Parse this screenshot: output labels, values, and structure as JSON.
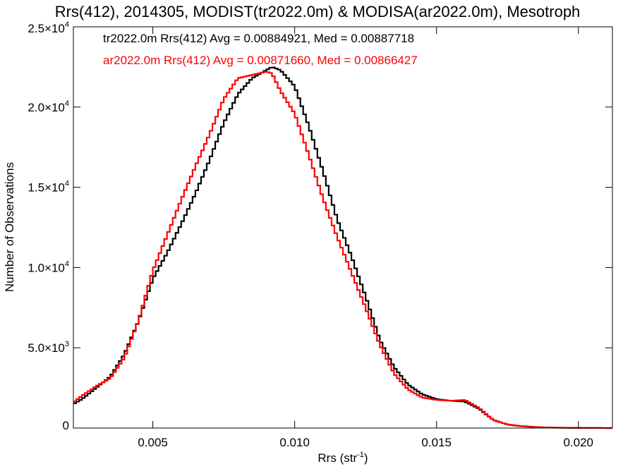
{
  "chart_data": {
    "type": "line",
    "title": "Rrs(412), 2014305, MODIST(tr2022.0m) & MODISA(ar2022.0m), Mesotroph",
    "xlabel": "Rrs (str",
    "xlabel_sup": "-1",
    "xlabel_end": ")",
    "ylabel": "Number of Observations",
    "xlim": [
      0.0022,
      0.0212
    ],
    "ylim": [
      0,
      25000
    ],
    "x_ticks": [
      0.005,
      0.01,
      0.015,
      0.02
    ],
    "x_tick_labels": [
      "0.005",
      "0.010",
      "0.015",
      "0.020"
    ],
    "y_ticks": [
      0,
      5000,
      10000,
      15000,
      20000,
      25000
    ],
    "y_tick_labels": [
      {
        "text": "0",
        "base": "0",
        "exp": ""
      },
      {
        "text": "5.0×10^3",
        "base": "5.0×10",
        "exp": "3"
      },
      {
        "text": "1.0×10^4",
        "base": "1.0×10",
        "exp": "4"
      },
      {
        "text": "1.5×10^4",
        "base": "1.5×10",
        "exp": "4"
      },
      {
        "text": "2.0×10^4",
        "base": "2.0×10",
        "exp": "4"
      },
      {
        "text": "2.5×10^4",
        "base": "2.5×10",
        "exp": "4"
      }
    ],
    "grid": false,
    "legend_position": "top-left",
    "series": [
      {
        "name": "tr2022.0m",
        "legend_text": "tr2022.0m Rrs(412) Avg = 0.00884921, Med = 0.00887718",
        "color": "#000000",
        "x": [
          0.0022,
          0.0025,
          0.003,
          0.0035,
          0.004,
          0.0045,
          0.005,
          0.0055,
          0.006,
          0.0065,
          0.007,
          0.0075,
          0.008,
          0.0085,
          0.009,
          0.0092,
          0.0095,
          0.01,
          0.0105,
          0.011,
          0.0115,
          0.012,
          0.0125,
          0.013,
          0.0135,
          0.014,
          0.0145,
          0.015,
          0.0155,
          0.016,
          0.0165,
          0.017,
          0.0175,
          0.018,
          0.0185,
          0.019,
          0.02,
          0.0212
        ],
        "y": [
          1500,
          1800,
          2500,
          3200,
          4600,
          6700,
          9300,
          10900,
          12700,
          14600,
          16700,
          19000,
          20800,
          21800,
          22300,
          22500,
          22300,
          21300,
          18800,
          16000,
          13000,
          10700,
          8200,
          5500,
          3800,
          2700,
          2100,
          1800,
          1700,
          1650,
          1200,
          500,
          220,
          120,
          60,
          30,
          10,
          0
        ]
      },
      {
        "name": "ar2022.0m",
        "legend_text": "ar2022.0m Rrs(412) Avg = 0.00871660, Med = 0.00866427",
        "color": "#ff0000",
        "x": [
          0.0022,
          0.0025,
          0.003,
          0.0035,
          0.004,
          0.0045,
          0.005,
          0.0055,
          0.006,
          0.0065,
          0.007,
          0.0075,
          0.008,
          0.0085,
          0.009,
          0.0092,
          0.0095,
          0.01,
          0.0105,
          0.011,
          0.0115,
          0.012,
          0.0125,
          0.013,
          0.0135,
          0.014,
          0.0145,
          0.015,
          0.0155,
          0.016,
          0.0165,
          0.017,
          0.0175,
          0.018,
          0.0185,
          0.019,
          0.02,
          0.0212
        ],
        "y": [
          1600,
          2000,
          2600,
          3100,
          4400,
          6700,
          9800,
          12000,
          14200,
          16300,
          18300,
          20500,
          21800,
          22000,
          22200,
          22100,
          21000,
          19600,
          17000,
          14300,
          11900,
          9700,
          7500,
          5200,
          3400,
          2400,
          1900,
          1750,
          1700,
          1750,
          1250,
          500,
          220,
          110,
          50,
          25,
          8,
          0
        ]
      }
    ]
  }
}
